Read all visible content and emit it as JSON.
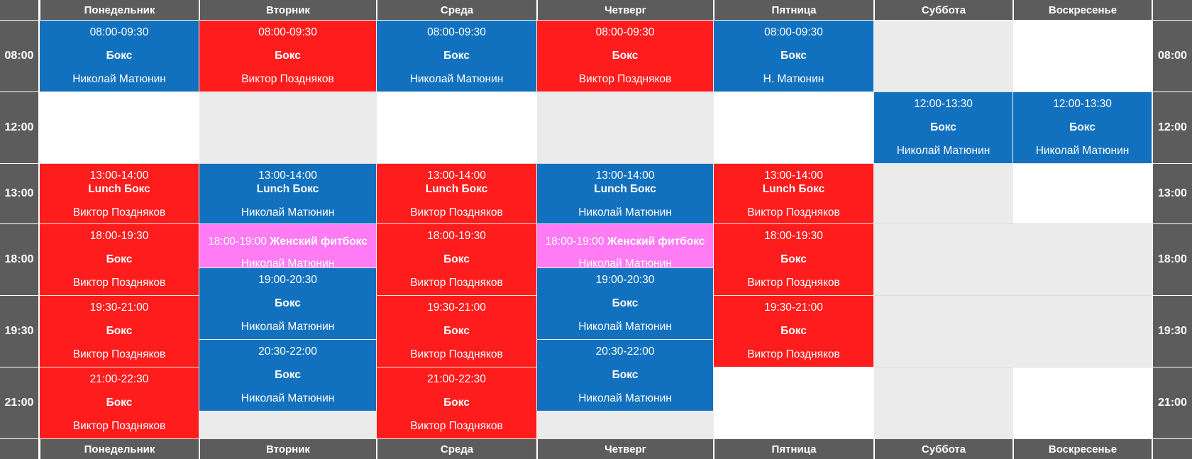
{
  "days": [
    "Понедельник",
    "Вторник",
    "Среда",
    "Четверг",
    "Пятница",
    "Суббота",
    "Воскресенье"
  ],
  "times": [
    "08:00",
    "12:00",
    "13:00",
    "18:00",
    "19:30",
    "21:00"
  ],
  "colors": {
    "header": "#5c5c5c",
    "red": "#ff1c1c",
    "blue": "#1271be",
    "pink": "#ff7cf4",
    "empty_gray": "#ebebeb"
  },
  "events": [
    {
      "day": 0,
      "slot": 0,
      "color": "blue",
      "time": "08:00-09:30",
      "name": "Бокс",
      "coach": "Николай Матюнин"
    },
    {
      "day": 1,
      "slot": 0,
      "color": "red",
      "time": "08:00-09:30",
      "name": "Бокс",
      "coach": "Виктор Поздняков"
    },
    {
      "day": 2,
      "slot": 0,
      "color": "blue",
      "time": "08:00-09:30",
      "name": "Бокс",
      "coach": "Николай Матюнин"
    },
    {
      "day": 3,
      "slot": 0,
      "color": "red",
      "time": "08:00-09:30",
      "name": "Бокс",
      "coach": "Виктор Поздняков"
    },
    {
      "day": 4,
      "slot": 0,
      "color": "blue",
      "time": "08:00-09:30",
      "name": "Бокс",
      "coach": "Н. Матюнин"
    },
    {
      "day": 5,
      "slot": 1,
      "color": "blue",
      "time": "12:00-13:30",
      "name": "Бокс",
      "coach": "Николай Матюнин"
    },
    {
      "day": 6,
      "slot": 1,
      "color": "blue",
      "time": "12:00-13:30",
      "name": "Бокс",
      "coach": "Николай Матюнин"
    },
    {
      "day": 0,
      "slot": 2,
      "color": "red",
      "kind": "lunch",
      "time": "13:00-14:00",
      "name": "Lunch Бокс",
      "coach": "Виктор Поздняков"
    },
    {
      "day": 1,
      "slot": 2,
      "color": "blue",
      "kind": "lunch",
      "time": "13:00-14:00",
      "name": "Lunch Бокс",
      "coach": "Николай Матюнин"
    },
    {
      "day": 2,
      "slot": 2,
      "color": "red",
      "kind": "lunch",
      "time": "13:00-14:00",
      "name": "Lunch Бокс",
      "coach": "Виктор Поздняков"
    },
    {
      "day": 3,
      "slot": 2,
      "color": "blue",
      "kind": "lunch",
      "time": "13:00-14:00",
      "name": "Lunch Бокс",
      "coach": "Николай Матюнин"
    },
    {
      "day": 4,
      "slot": 2,
      "color": "red",
      "kind": "lunch",
      "time": "13:00-14:00",
      "name": "Lunch Бокс",
      "coach": "Виктор Поздняков"
    },
    {
      "day": 0,
      "slot": 3,
      "color": "red",
      "time": "18:00-19:30",
      "name": "Бокс",
      "coach": "Виктор Поздняков"
    },
    {
      "day": 1,
      "slot": 3,
      "color": "pink",
      "kind": "short",
      "time": "18:00-19:00",
      "name": "Женский фитбокс",
      "coach": "Николай Матюнин"
    },
    {
      "day": 2,
      "slot": 3,
      "color": "red",
      "time": "18:00-19:30",
      "name": "Бокс",
      "coach": "Виктор Поздняков"
    },
    {
      "day": 3,
      "slot": 3,
      "color": "pink",
      "kind": "short",
      "time": "18:00-19:00",
      "name": "Женский фитбокс",
      "coach": "Николай Матюнин"
    },
    {
      "day": 4,
      "slot": 3,
      "color": "red",
      "time": "18:00-19:30",
      "name": "Бокс",
      "coach": "Виктор Поздняков"
    },
    {
      "day": 1,
      "slot": 3.5,
      "color": "blue",
      "time": "19:00-20:30",
      "name": "Бокс",
      "coach": "Николай Матюнин"
    },
    {
      "day": 3,
      "slot": 3.5,
      "color": "blue",
      "time": "19:00-20:30",
      "name": "Бокс",
      "coach": "Николай Матюнин"
    },
    {
      "day": 0,
      "slot": 4,
      "color": "red",
      "time": "19:30-21:00",
      "name": "Бокс",
      "coach": "Виктор Поздняков"
    },
    {
      "day": 2,
      "slot": 4,
      "color": "red",
      "time": "19:30-21:00",
      "name": "Бокс",
      "coach": "Виктор Поздняков"
    },
    {
      "day": 4,
      "slot": 4,
      "color": "red",
      "time": "19:30-21:00",
      "name": "Бокс",
      "coach": "Виктор Поздняков"
    },
    {
      "day": 1,
      "slot": 4.5,
      "color": "blue",
      "time": "20:30-22:00",
      "name": "Бокс",
      "coach": "Николай Матюнин"
    },
    {
      "day": 3,
      "slot": 4.5,
      "color": "blue",
      "time": "20:30-22:00",
      "name": "Бокс",
      "coach": "Николай Матюнин"
    },
    {
      "day": 0,
      "slot": 5,
      "color": "red",
      "time": "21:00-22:30",
      "name": "Бокс",
      "coach": "Виктор Поздняков"
    },
    {
      "day": 2,
      "slot": 5,
      "color": "red",
      "time": "21:00-22:30",
      "name": "Бокс",
      "coach": "Виктор Поздняков"
    }
  ]
}
